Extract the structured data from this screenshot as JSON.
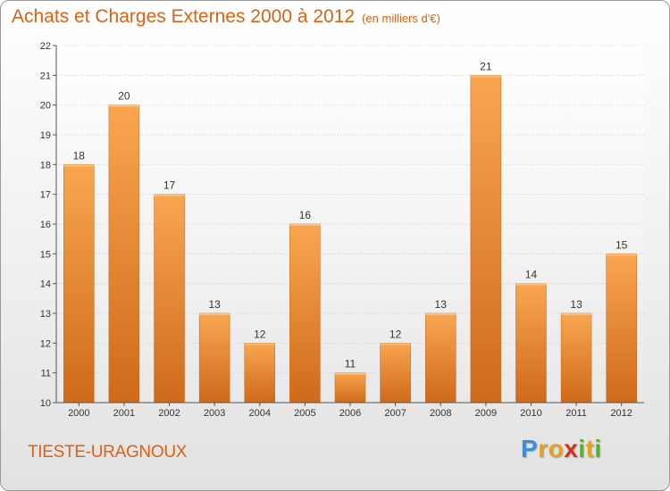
{
  "title": "Achats et Charges Externes 2000 à 2012",
  "unit_note": "(en milliers d'€)",
  "commune": "TIESTE-URAGNOUX",
  "logo": {
    "letters": [
      "P",
      "r",
      "o",
      "x",
      "i",
      "t",
      "i"
    ],
    "colors": [
      "#3a8fd8",
      "#e8a020",
      "#e8a020",
      "#d83020",
      "#58b030",
      "#e8a020",
      "#58b030"
    ]
  },
  "colors": {
    "bar_top": "#f9a650",
    "bar_bottom": "#cf6a1a",
    "accent": "#e06010"
  },
  "chart_data": {
    "type": "bar",
    "title": "Achats et Charges Externes 2000 à 2012",
    "subtitle": "(en milliers d'€)",
    "categories": [
      "2000",
      "2001",
      "2002",
      "2003",
      "2004",
      "2005",
      "2006",
      "2007",
      "2008",
      "2009",
      "2010",
      "2011",
      "2012"
    ],
    "values": [
      18,
      20,
      17,
      13,
      12,
      16,
      11,
      12,
      13,
      21,
      14,
      13,
      15
    ],
    "ylim": [
      10,
      22
    ],
    "yticks": [
      10,
      11,
      12,
      13,
      14,
      15,
      16,
      17,
      18,
      19,
      20,
      21,
      22
    ],
    "grid": true,
    "xlabel": "",
    "ylabel": ""
  }
}
